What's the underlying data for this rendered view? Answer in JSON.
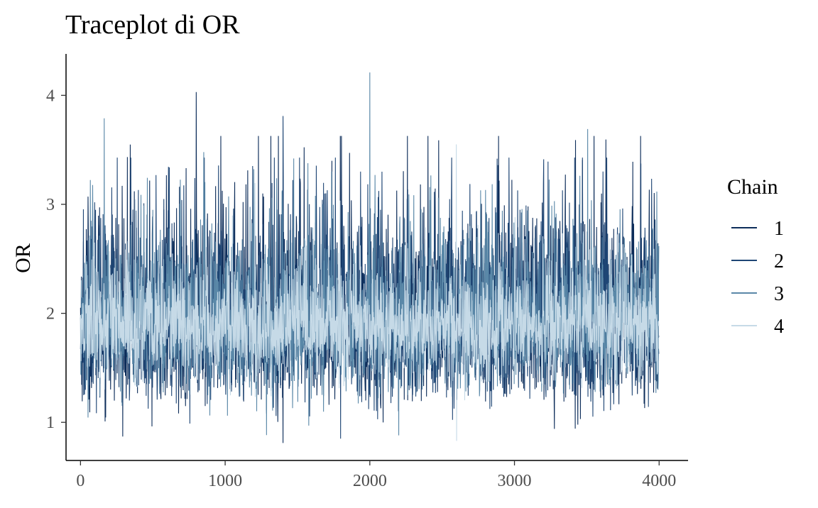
{
  "chart_data": {
    "type": "line",
    "title": "Traceplot di OR",
    "xlabel": "",
    "ylabel": "OR",
    "xlim": [
      -100,
      4200
    ],
    "ylim": [
      0.65,
      4.38
    ],
    "x_ticks": [
      0,
      1000,
      2000,
      3000,
      4000
    ],
    "y_ticks": [
      1,
      2,
      3,
      4
    ],
    "x_tick_labels": [
      "0",
      "1000",
      "2000",
      "3000",
      "4000"
    ],
    "y_tick_labels": [
      "1",
      "2",
      "3",
      "4"
    ],
    "grid": false,
    "legend": {
      "title": "Chain",
      "position": "right"
    },
    "iterations": 4000,
    "series": [
      {
        "name": "1",
        "color": "#0d2d5a",
        "mean": 1.95,
        "sd": 0.45,
        "min": 0.81,
        "max": 4.03
      },
      {
        "name": "2",
        "color": "#1f4675",
        "mean": 1.95,
        "sd": 0.43,
        "min": 0.85,
        "max": 3.81
      },
      {
        "name": "3",
        "color": "#5a88a8",
        "mean": 1.93,
        "sd": 0.38,
        "min": 0.88,
        "max": 4.21
      },
      {
        "name": "4",
        "color": "#c6dae7",
        "mean": 1.88,
        "sd": 0.27,
        "min": 0.83,
        "max": 3.55
      }
    ]
  }
}
